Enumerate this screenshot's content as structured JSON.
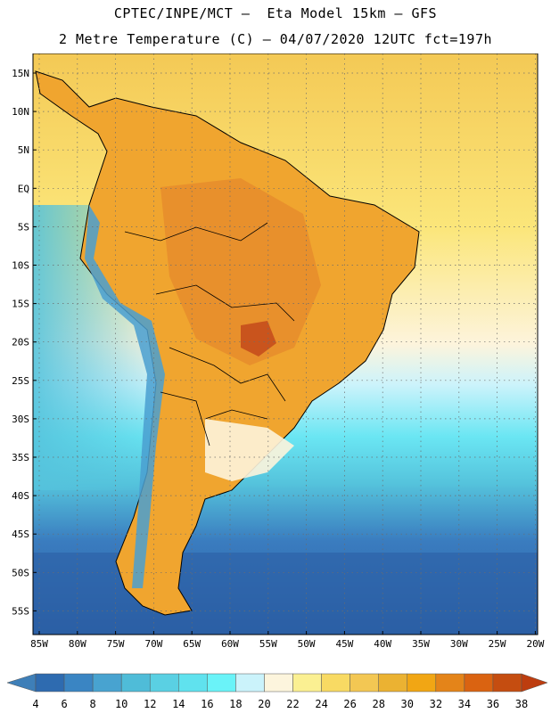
{
  "header": {
    "line1": "CPTEC/INPE/MCT –  Eta Model 15km – GFS",
    "line2": "2 Metre Temperature (C) – 04/07/2020 12UTC fct=197h"
  },
  "map": {
    "lat_labels": [
      "15N",
      "10N",
      "5N",
      "EQ",
      "5S",
      "10S",
      "15S",
      "20S",
      "25S",
      "30S",
      "35S",
      "40S",
      "45S",
      "50S",
      "55S"
    ],
    "lon_labels": [
      "85W",
      "80W",
      "75W",
      "70W",
      "65W",
      "60W",
      "55W",
      "50W",
      "45W",
      "40W",
      "35W",
      "30W",
      "25W",
      "20W"
    ],
    "colors": {
      "ocean_far": "#2b5fa5",
      "ocean_south": "#3a7cbf",
      "ocean_mid": "#55c3dc",
      "ocean_cyan": "#6ae6f3",
      "ocean_pale": "#ccf3fb",
      "ocean_cream": "#fdf4dc",
      "ocean_warm": "#fbe67a",
      "ocean_gold": "#f4c955",
      "land_hot": "#f0a52f",
      "land_very_hot": "#e2822c",
      "land_hottest": "#c9541d",
      "andes_cold": "#4a9fd0"
    }
  },
  "colorbar": {
    "labels": [
      "4",
      "6",
      "8",
      "10",
      "12",
      "14",
      "16",
      "18",
      "20",
      "22",
      "24",
      "26",
      "28",
      "30",
      "32",
      "34",
      "36",
      "38"
    ],
    "colors": [
      "#3e7fb8",
      "#2e6bb0",
      "#3a85c3",
      "#48a3d0",
      "#4fbcd8",
      "#5ad0e3",
      "#60e2ee",
      "#6af3f8",
      "#cbf3fb",
      "#fdf5dd",
      "#fbf092",
      "#f8da63",
      "#f3c753",
      "#ebb232",
      "#f1a614",
      "#e48419",
      "#da6311",
      "#c54d10",
      "#bd3d0f"
    ]
  }
}
